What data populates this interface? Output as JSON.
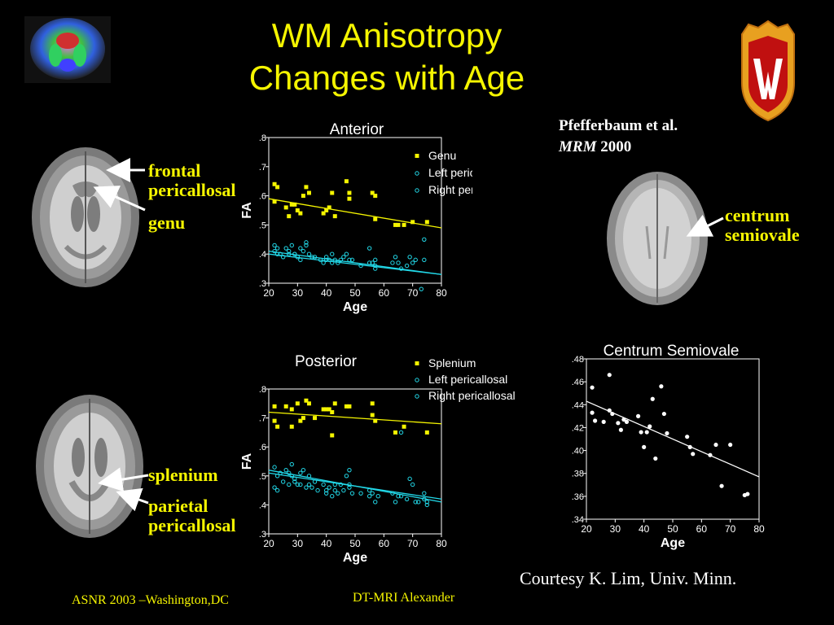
{
  "slide": {
    "title_line1": "WM Anisotropy",
    "title_line2": "Changes with Age",
    "citation_line1": "Pfefferbaum et al.",
    "citation_journal": "MRM",
    "citation_year": "2000",
    "courtesy": "Courtesy K. Lim, Univ. Minn.",
    "footer_left": "ASNR 2003 –Washington,DC",
    "footer_center": "DT-MRI Alexander",
    "labels": {
      "frontal": "frontal",
      "pericallosal": "pericallosal",
      "genu": "genu",
      "centrum": "centrum",
      "semiovale": "semiovale",
      "splenium": "splenium",
      "parietal": "parietal",
      "pericallosal2": "pericallosal"
    },
    "colors": {
      "title": "#f5f500",
      "yellow_series": "#f5f500",
      "cyan_series": "#22d8e8",
      "background": "#000000"
    }
  },
  "chart_data": [
    {
      "type": "scatter",
      "title": "Anterior",
      "xlabel": "Age",
      "ylabel": "FA",
      "xlim": [
        20,
        80
      ],
      "ylim": [
        0.3,
        0.8
      ],
      "xticks": [
        "20",
        "30",
        "40",
        "50",
        "60",
        "70",
        "80"
      ],
      "yticks": [
        ".3",
        ".4",
        ".5",
        ".6",
        ".7",
        ".8"
      ],
      "series": [
        {
          "name": "Genu",
          "marker": "filled-square",
          "color": "#f5f500",
          "points": [
            [
              22,
              0.64
            ],
            [
              23,
              0.63
            ],
            [
              22,
              0.58
            ],
            [
              26,
              0.56
            ],
            [
              27,
              0.53
            ],
            [
              28,
              0.57
            ],
            [
              29,
              0.57
            ],
            [
              30,
              0.55
            ],
            [
              31,
              0.54
            ],
            [
              32,
              0.6
            ],
            [
              33,
              0.63
            ],
            [
              34,
              0.61
            ],
            [
              39,
              0.54
            ],
            [
              40,
              0.55
            ],
            [
              41,
              0.56
            ],
            [
              42,
              0.61
            ],
            [
              43,
              0.53
            ],
            [
              47,
              0.65
            ],
            [
              48,
              0.61
            ],
            [
              48,
              0.59
            ],
            [
              56,
              0.61
            ],
            [
              57,
              0.6
            ],
            [
              57,
              0.52
            ],
            [
              64,
              0.5
            ],
            [
              65,
              0.5
            ],
            [
              67,
              0.5
            ],
            [
              70,
              0.51
            ],
            [
              75,
              0.51
            ]
          ],
          "trend": [
            [
              20,
              0.59
            ],
            [
              80,
              0.49
            ]
          ]
        },
        {
          "name": "Left pericallosal",
          "marker": "open-circle",
          "color": "#22d8e8",
          "points": [
            [
              22,
              0.43
            ],
            [
              22,
              0.41
            ],
            [
              23,
              0.42
            ],
            [
              24,
              0.4
            ],
            [
              26,
              0.42
            ],
            [
              27,
              0.41
            ],
            [
              28,
              0.43
            ],
            [
              29,
              0.4
            ],
            [
              30,
              0.39
            ],
            [
              31,
              0.42
            ],
            [
              32,
              0.41
            ],
            [
              33,
              0.44
            ],
            [
              34,
              0.4
            ],
            [
              36,
              0.39
            ],
            [
              39,
              0.37
            ],
            [
              40,
              0.39
            ],
            [
              41,
              0.38
            ],
            [
              42,
              0.4
            ],
            [
              43,
              0.38
            ],
            [
              44,
              0.37
            ],
            [
              46,
              0.39
            ],
            [
              47,
              0.4
            ],
            [
              49,
              0.38
            ],
            [
              55,
              0.42
            ],
            [
              56,
              0.37
            ],
            [
              57,
              0.35
            ],
            [
              57,
              0.38
            ],
            [
              64,
              0.39
            ],
            [
              65,
              0.37
            ],
            [
              66,
              0.35
            ],
            [
              69,
              0.39
            ],
            [
              70,
              0.37
            ],
            [
              74,
              0.38
            ]
          ],
          "trend": [
            [
              20,
              0.41
            ],
            [
              80,
              0.33
            ]
          ]
        },
        {
          "name": "Right pericallosal",
          "marker": "open-circle",
          "color": "#22d8e8",
          "points": [
            [
              23,
              0.4
            ],
            [
              25,
              0.39
            ],
            [
              27,
              0.4
            ],
            [
              29,
              0.4
            ],
            [
              31,
              0.38
            ],
            [
              33,
              0.43
            ],
            [
              35,
              0.39
            ],
            [
              38,
              0.38
            ],
            [
              40,
              0.38
            ],
            [
              42,
              0.37
            ],
            [
              45,
              0.38
            ],
            [
              48,
              0.38
            ],
            [
              52,
              0.36
            ],
            [
              55,
              0.37
            ],
            [
              57,
              0.36
            ],
            [
              63,
              0.37
            ],
            [
              68,
              0.36
            ],
            [
              71,
              0.38
            ],
            [
              74,
              0.45
            ],
            [
              73,
              0.28
            ]
          ],
          "trend": [
            [
              20,
              0.4
            ],
            [
              80,
              0.33
            ]
          ]
        }
      ]
    },
    {
      "type": "scatter",
      "title": "Posterior",
      "xlabel": "Age",
      "ylabel": "FA",
      "xlim": [
        20,
        80
      ],
      "ylim": [
        0.3,
        0.8
      ],
      "xticks": [
        "20",
        "30",
        "40",
        "50",
        "60",
        "70",
        "80"
      ],
      "yticks": [
        ".3",
        ".4",
        ".5",
        ".6",
        ".7",
        ".8"
      ],
      "series": [
        {
          "name": "Splenium",
          "marker": "filled-square",
          "color": "#f5f500",
          "points": [
            [
              22,
              0.74
            ],
            [
              22,
              0.69
            ],
            [
              23,
              0.67
            ],
            [
              26,
              0.74
            ],
            [
              28,
              0.73
            ],
            [
              28,
              0.67
            ],
            [
              30,
              0.75
            ],
            [
              31,
              0.69
            ],
            [
              32,
              0.7
            ],
            [
              33,
              0.76
            ],
            [
              34,
              0.75
            ],
            [
              36,
              0.7
            ],
            [
              39,
              0.73
            ],
            [
              40,
              0.73
            ],
            [
              41,
              0.73
            ],
            [
              42,
              0.72
            ],
            [
              42,
              0.64
            ],
            [
              43,
              0.75
            ],
            [
              47,
              0.74
            ],
            [
              48,
              0.74
            ],
            [
              56,
              0.75
            ],
            [
              56,
              0.71
            ],
            [
              57,
              0.69
            ],
            [
              64,
              0.65
            ],
            [
              67,
              0.67
            ],
            [
              75,
              0.65
            ]
          ],
          "trend": [
            [
              20,
              0.72
            ],
            [
              80,
              0.68
            ]
          ]
        },
        {
          "name": "Left pericallosal",
          "marker": "open-circle",
          "color": "#22d8e8",
          "points": [
            [
              22,
              0.53
            ],
            [
              22,
              0.46
            ],
            [
              23,
              0.45
            ],
            [
              24,
              0.51
            ],
            [
              26,
              0.52
            ],
            [
              27,
              0.47
            ],
            [
              28,
              0.54
            ],
            [
              28,
              0.5
            ],
            [
              29,
              0.48
            ],
            [
              30,
              0.47
            ],
            [
              31,
              0.51
            ],
            [
              32,
              0.52
            ],
            [
              33,
              0.46
            ],
            [
              34,
              0.47
            ],
            [
              35,
              0.46
            ],
            [
              36,
              0.48
            ],
            [
              39,
              0.47
            ],
            [
              40,
              0.44
            ],
            [
              41,
              0.46
            ],
            [
              42,
              0.43
            ],
            [
              43,
              0.47
            ],
            [
              44,
              0.44
            ],
            [
              46,
              0.45
            ],
            [
              47,
              0.5
            ],
            [
              48,
              0.52
            ],
            [
              48,
              0.47
            ],
            [
              49,
              0.44
            ],
            [
              55,
              0.45
            ],
            [
              56,
              0.44
            ],
            [
              57,
              0.41
            ],
            [
              64,
              0.41
            ],
            [
              65,
              0.43
            ],
            [
              66,
              0.43
            ],
            [
              69,
              0.49
            ],
            [
              70,
              0.47
            ],
            [
              72,
              0.41
            ],
            [
              74,
              0.44
            ],
            [
              75,
              0.41
            ]
          ],
          "trend": [
            [
              20,
              0.52
            ],
            [
              80,
              0.41
            ]
          ]
        },
        {
          "name": "Right pericallosal",
          "marker": "open-circle",
          "color": "#22d8e8",
          "points": [
            [
              23,
              0.5
            ],
            [
              25,
              0.48
            ],
            [
              27,
              0.51
            ],
            [
              29,
              0.49
            ],
            [
              31,
              0.47
            ],
            [
              34,
              0.5
            ],
            [
              37,
              0.45
            ],
            [
              40,
              0.45
            ],
            [
              43,
              0.45
            ],
            [
              45,
              0.47
            ],
            [
              48,
              0.46
            ],
            [
              52,
              0.44
            ],
            [
              55,
              0.43
            ],
            [
              58,
              0.43
            ],
            [
              63,
              0.44
            ],
            [
              66,
              0.65
            ],
            [
              68,
              0.42
            ],
            [
              71,
              0.41
            ],
            [
              74,
              0.42
            ],
            [
              75,
              0.4
            ]
          ],
          "trend": [
            [
              20,
              0.51
            ],
            [
              80,
              0.42
            ]
          ]
        }
      ]
    },
    {
      "type": "scatter",
      "title": "Centrum Semiovale",
      "xlabel": "Age",
      "ylabel": "",
      "xlim": [
        20,
        80
      ],
      "ylim": [
        0.34,
        0.48
      ],
      "xticks": [
        "20",
        "30",
        "40",
        "50",
        "60",
        "70",
        "80"
      ],
      "yticks": [
        ".34",
        ".36",
        ".38",
        ".40",
        ".42",
        ".44",
        ".46",
        ".48"
      ],
      "series": [
        {
          "name": "",
          "marker": "filled-circle",
          "color": "#ffffff",
          "points": [
            [
              22,
              0.455
            ],
            [
              22,
              0.433
            ],
            [
              23,
              0.426
            ],
            [
              26,
              0.425
            ],
            [
              28,
              0.466
            ],
            [
              28,
              0.435
            ],
            [
              29,
              0.432
            ],
            [
              31,
              0.424
            ],
            [
              32,
              0.418
            ],
            [
              33,
              0.427
            ],
            [
              34,
              0.425
            ],
            [
              38,
              0.43
            ],
            [
              39,
              0.416
            ],
            [
              40,
              0.403
            ],
            [
              41,
              0.416
            ],
            [
              42,
              0.421
            ],
            [
              43,
              0.445
            ],
            [
              44,
              0.393
            ],
            [
              46,
              0.456
            ],
            [
              47,
              0.432
            ],
            [
              48,
              0.415
            ],
            [
              55,
              0.412
            ],
            [
              56,
              0.403
            ],
            [
              57,
              0.397
            ],
            [
              63,
              0.396
            ],
            [
              65,
              0.405
            ],
            [
              67,
              0.369
            ],
            [
              70,
              0.405
            ],
            [
              75,
              0.361
            ],
            [
              76,
              0.362
            ]
          ],
          "trend": [
            [
              20,
              0.443
            ],
            [
              80,
              0.377
            ]
          ]
        }
      ]
    }
  ]
}
